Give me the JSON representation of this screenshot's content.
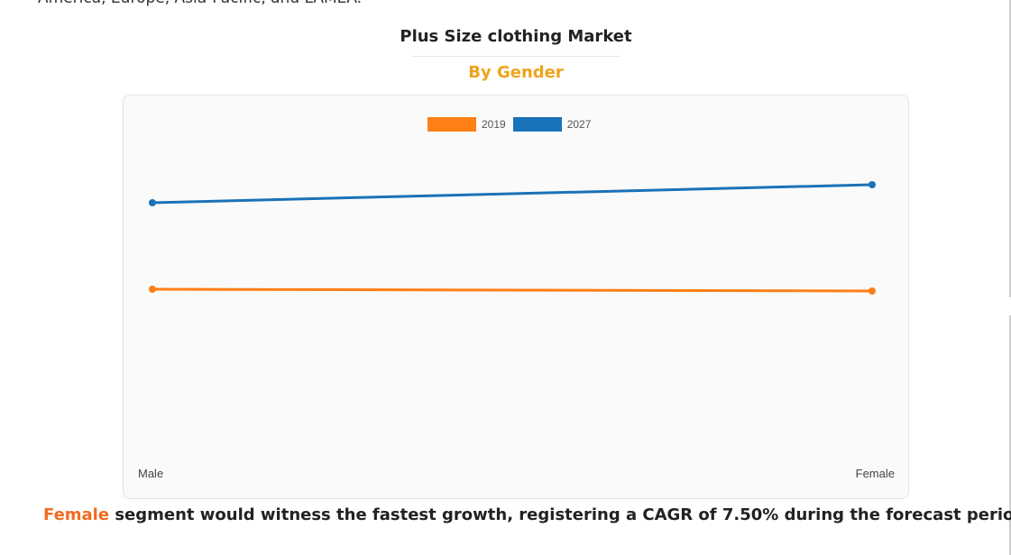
{
  "page": {
    "intro_fragment": "America, Europe, Asia-Pacific, and LAMEA."
  },
  "colors": {
    "accent_orange": "#f0a21b",
    "highlight": "#f26b21",
    "series_2019": "#fd7f16",
    "series_2027": "#1a72b8"
  },
  "chart_data": {
    "type": "line",
    "title": "Plus Size clothing Market",
    "subtitle": "By Gender",
    "categories": [
      "Male",
      "Female"
    ],
    "series": [
      {
        "name": "2019",
        "values": [
          48,
          47.5
        ]
      },
      {
        "name": "2027",
        "values": [
          72,
          77
        ]
      }
    ],
    "ylim": [
      0,
      100
    ],
    "grid": false,
    "legend_position": "top-center",
    "xlabel": "",
    "ylabel": ""
  },
  "footer": {
    "highlight": "Female",
    "text": " segment would witness the fastest growth, registering a CAGR of 7.50% during the forecast period."
  }
}
